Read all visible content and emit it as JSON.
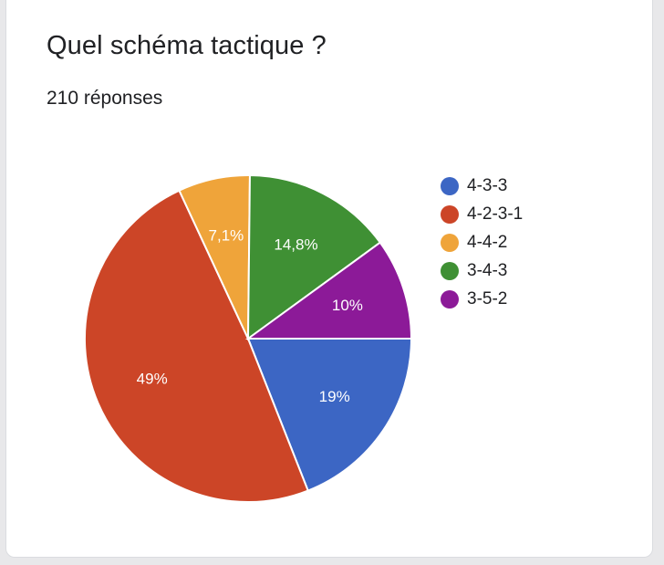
{
  "question": {
    "title": "Quel schéma tactique ?",
    "responses_label": "210 réponses"
  },
  "chart_data": {
    "type": "pie",
    "title": "Quel schéma tactique ?",
    "subtitle": "210 réponses",
    "legend_position": "right",
    "slices": [
      {
        "label": "4-3-3",
        "value": 19,
        "display": "19%",
        "color": "#3c66c4"
      },
      {
        "label": "4-2-3-1",
        "value": 49,
        "display": "49%",
        "color": "#cc4527"
      },
      {
        "label": "4-4-2",
        "value": 7.1,
        "display": "7,1%",
        "color": "#efa43a"
      },
      {
        "label": "3-4-3",
        "value": 14.8,
        "display": "14,8%",
        "color": "#3f9034"
      },
      {
        "label": "3-5-2",
        "value": 10,
        "display": "10%",
        "color": "#8c1a98"
      }
    ]
  }
}
